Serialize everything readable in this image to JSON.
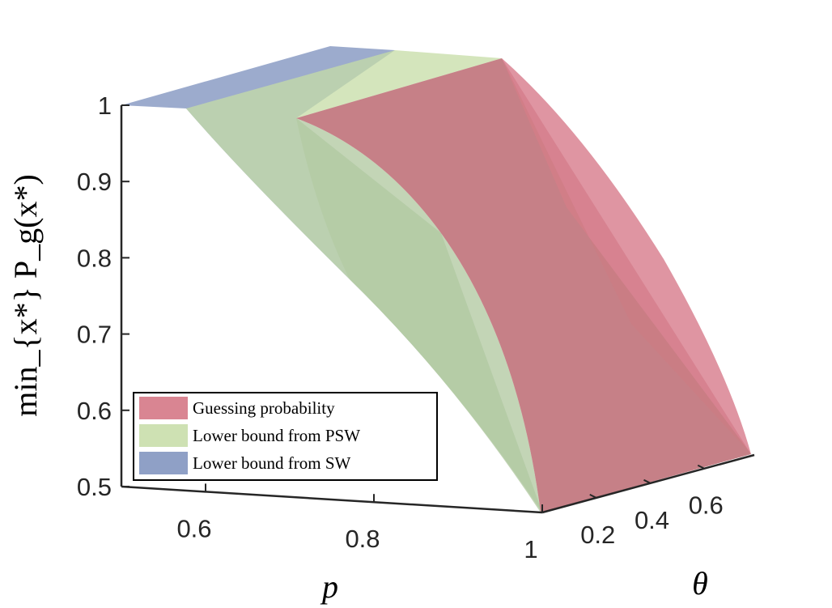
{
  "chart_data": {
    "type": "surface3d",
    "title": "",
    "xlabel": "p",
    "ylabel": "θ",
    "zlabel": "min_{x*} P_g(x*)",
    "x_ticks": [
      "0.6",
      "0.8",
      "1"
    ],
    "y_ticks": [
      "0.2",
      "0.4",
      "0.6"
    ],
    "z_ticks": [
      "0.5",
      "0.6",
      "0.7",
      "0.8",
      "0.9",
      "1"
    ],
    "xlim": [
      0.5,
      1.0
    ],
    "ylim": [
      0.0,
      0.785
    ],
    "zlim": [
      0.5,
      1.0
    ],
    "legend_position": "bottom-left",
    "series": [
      {
        "name": "Guessing probability",
        "color": "#d2707f",
        "p_range": [
          0.71,
          1.0
        ],
        "z_at_theta_min": [
          0.985,
          0.5
        ],
        "z_at_theta_max": [
          1.0,
          0.5
        ]
      },
      {
        "name": "Lower bound from PSW",
        "color": "#c6dca6",
        "p_range": [
          0.58,
          1.0
        ],
        "z_at_theta_min": [
          0.993,
          0.5
        ],
        "z_at_theta_max": [
          1.0,
          0.5
        ]
      },
      {
        "name": "Lower bound from SW",
        "color": "#7b8fbc",
        "p_range": [
          0.5,
          1.0
        ],
        "z_at_theta_min": [
          1.0,
          0.5
        ],
        "z_at_theta_max": [
          1.0,
          0.5
        ]
      }
    ]
  }
}
